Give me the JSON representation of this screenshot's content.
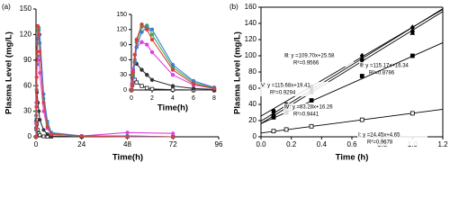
{
  "chart_data": [
    {
      "type": "line",
      "panel_label": "(a)",
      "ylabel": "Plasma Level (mg/L)",
      "xlabel": "Time(h)",
      "xlim": [
        0,
        96
      ],
      "xticks": [
        0,
        24,
        48,
        72,
        96
      ],
      "ylim": [
        0,
        150
      ],
      "yticks": [
        0,
        30,
        60,
        90,
        120,
        150
      ],
      "x": [
        0,
        0.083,
        0.167,
        0.333,
        0.5,
        1,
        1.5,
        2,
        4,
        6,
        8,
        24,
        48,
        72
      ],
      "series": [
        {
          "color": "#222222",
          "marker": "square-open",
          "values": [
            0,
            10,
            18,
            20,
            15,
            8,
            4,
            2,
            0.5,
            0,
            0,
            0,
            0,
            0
          ]
        },
        {
          "color": "#333333",
          "marker": "circle",
          "values": [
            0,
            25,
            40,
            55,
            52,
            40,
            30,
            20,
            8,
            3,
            1,
            0,
            0,
            0
          ]
        },
        {
          "color": "#e040e0",
          "marker": "circle",
          "values": [
            0,
            15,
            40,
            70,
            85,
            95,
            90,
            75,
            30,
            10,
            3,
            1,
            5,
            4
          ]
        },
        {
          "color": "#3cb043",
          "marker": "circle",
          "values": [
            0,
            10,
            30,
            60,
            95,
            125,
            128,
            110,
            45,
            15,
            4,
            1,
            1,
            0
          ]
        },
        {
          "color": "#3a7fd5",
          "marker": "circle",
          "values": [
            0,
            8,
            25,
            55,
            85,
            115,
            125,
            120,
            50,
            18,
            5,
            1,
            1,
            0
          ]
        },
        {
          "color": "#d94040",
          "marker": "circle",
          "values": [
            0,
            10,
            35,
            70,
            100,
            130,
            120,
            100,
            40,
            12,
            3,
            1,
            0,
            0
          ]
        }
      ],
      "inset": {
        "xlabel": "Time(h)",
        "xlim": [
          0,
          8
        ],
        "xticks": [
          0,
          2,
          4,
          6,
          8
        ],
        "ylim": [
          0,
          150
        ],
        "yticks": [
          0,
          30,
          60,
          90,
          120,
          150
        ]
      }
    },
    {
      "type": "scatter",
      "panel_label": "(b)",
      "ylabel": "Plasma Level (mg/L)",
      "xlabel": "Time (h)",
      "xlim": [
        0,
        1.2
      ],
      "xticks": [
        {
          "value": 0,
          "label": "0.0"
        },
        0.2,
        0.4,
        0.6,
        0.8,
        {
          "value": 1,
          "label": "1.0"
        },
        1.2
      ],
      "ylim": [
        0,
        160
      ],
      "yticks": [
        0,
        20,
        40,
        60,
        80,
        100,
        120,
        140,
        160
      ],
      "x": [
        0.083,
        0.167,
        0.333,
        0.667,
        1
      ],
      "series": [
        {
          "color": "#000000",
          "marker": "circle",
          "values": [
            32,
            40,
            62,
            95,
            130
          ],
          "fit": {
            "slope": 109.7,
            "intercept": 25.58,
            "equation": "Ⅲ: y =109.70x+25.58",
            "r2": "R²=0.9566"
          }
        },
        {
          "color": "#000000",
          "marker": "triangle",
          "values": [
            28,
            36,
            55,
            90,
            128
          ],
          "fit": {
            "slope": 115.17,
            "intercept": 16.34,
            "equation": "Ⅱ: y =115.17x+16.34",
            "r2": "R²=0.8786"
          }
        },
        {
          "color": "#000000",
          "marker": "diamond",
          "values": [
            30,
            38,
            58,
            100,
            135
          ],
          "fit": {
            "slope": 115.68,
            "intercept": 19.41,
            "equation": "V: y =115.68x+19.41",
            "r2": "R²=0.9294"
          }
        },
        {
          "color": "#000000",
          "marker": "square",
          "values": [
            24,
            30,
            45,
            75,
            100
          ],
          "fit": {
            "slope": 83.28,
            "intercept": 16.26,
            "equation": "Ⅳ: y =83.28x+16.26",
            "r2": "R²=0.9441"
          }
        },
        {
          "color": "#000000",
          "marker": "square-open",
          "values": [
            7,
            9,
            13,
            21,
            29
          ],
          "fit": {
            "slope": 24.45,
            "intercept": 4.65,
            "equation": "Ⅰ: y =24.45x+4.65",
            "r2": "R²=0.9678"
          }
        }
      ]
    }
  ]
}
